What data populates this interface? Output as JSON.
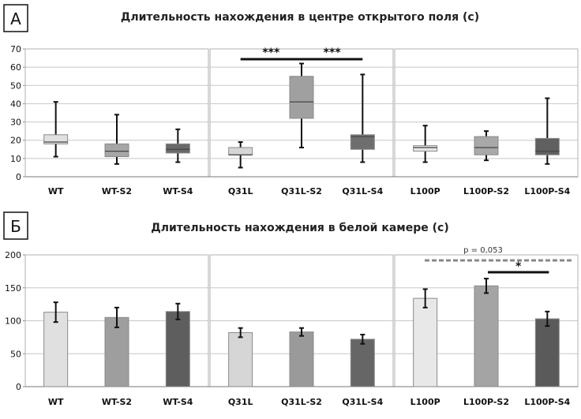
{
  "chart_data": [
    {
      "panel": "А",
      "type": "boxplot",
      "title": "Длительность нахождения в центре открытого поля (с)",
      "ylim": [
        0,
        70
      ],
      "yticks": [
        0,
        10,
        20,
        30,
        40,
        50,
        60,
        70
      ],
      "groups": [
        {
          "categories": [
            "WT",
            "WT-S2",
            "WT-S4"
          ],
          "boxes": [
            {
              "min": 11,
              "q1": 18,
              "median": 19,
              "q3": 23,
              "max": 41
            },
            {
              "min": 7,
              "q1": 11,
              "median": 14,
              "q3": 18,
              "max": 34
            },
            {
              "min": 8,
              "q1": 13,
              "median": 15,
              "q3": 18,
              "max": 26
            }
          ],
          "colors": [
            "#e0e0e0",
            "#a6a6a6",
            "#696969"
          ]
        },
        {
          "categories": [
            "Q31L",
            "Q31L-S2",
            "Q31L-S4"
          ],
          "boxes": [
            {
              "min": 5,
              "q1": 12,
              "median": 12,
              "q3": 16,
              "max": 19
            },
            {
              "min": 16,
              "q1": 32,
              "median": 41,
              "q3": 55,
              "max": 62
            },
            {
              "min": 8,
              "q1": 15,
              "median": 22,
              "q3": 23,
              "max": 56
            }
          ],
          "colors": [
            "#d6d6d6",
            "#a0a0a0",
            "#6e6e6e"
          ],
          "significance": [
            {
              "from": 0,
              "to": 1,
              "label": "***"
            },
            {
              "from": 1,
              "to": 2,
              "label": "***"
            }
          ]
        },
        {
          "categories": [
            "L100P",
            "L100P-S2",
            "L100P-S4"
          ],
          "boxes": [
            {
              "min": 8,
              "q1": 14,
              "median": 16,
              "q3": 17,
              "max": 28
            },
            {
              "min": 9,
              "q1": 12,
              "median": 16,
              "q3": 22,
              "max": 25
            },
            {
              "min": 7,
              "q1": 12,
              "median": 14,
              "q3": 21,
              "max": 43
            }
          ],
          "colors": [
            "#e6e6e6",
            "#a8a8a8",
            "#606060"
          ]
        }
      ]
    },
    {
      "panel": "Б",
      "type": "bar",
      "title": "Длительность нахождения в белой камере (с)",
      "ylim": [
        0,
        200
      ],
      "yticks": [
        0,
        50,
        100,
        150,
        200
      ],
      "groups": [
        {
          "categories": [
            "WT",
            "WT-S2",
            "WT-S4"
          ],
          "values": [
            113,
            105,
            114
          ],
          "errors": [
            15,
            15,
            12
          ],
          "colors": [
            "#e0e0e0",
            "#9e9e9e",
            "#5e5e5e"
          ]
        },
        {
          "categories": [
            "Q31L",
            "Q31L-S2",
            "Q31L-S4"
          ],
          "values": [
            82,
            83,
            72
          ],
          "errors": [
            7,
            6,
            7
          ],
          "colors": [
            "#d6d6d6",
            "#9a9a9a",
            "#666666"
          ]
        },
        {
          "categories": [
            "L100P",
            "L100P-S2",
            "L100P-S4"
          ],
          "values": [
            134,
            153,
            103
          ],
          "errors": [
            14,
            11,
            11
          ],
          "colors": [
            "#e8e8e8",
            "#a4a4a4",
            "#5a5a5a"
          ],
          "significance": [
            {
              "from": 0,
              "to": 2,
              "label": "p = 0,053",
              "style": "dashed"
            },
            {
              "from": 1,
              "to": 2,
              "label": "*",
              "style": "solid"
            }
          ]
        }
      ]
    }
  ]
}
